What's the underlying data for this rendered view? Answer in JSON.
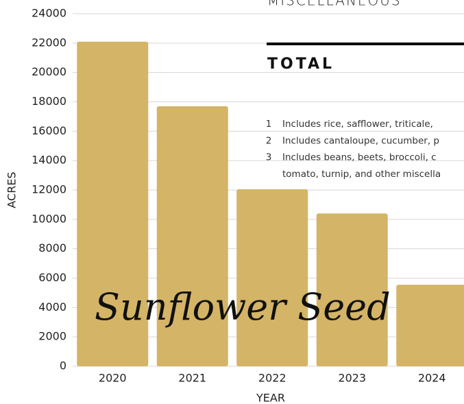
{
  "chart_data": {
    "type": "bar",
    "categories": [
      "2020",
      "2021",
      "2022",
      "2023",
      "2024"
    ],
    "values": [
      22100,
      17700,
      12050,
      10400,
      5550
    ],
    "color": "#d4b466",
    "xlabel": "YEAR",
    "ylabel": "ACRES",
    "ylim": [
      0,
      24000
    ],
    "yticks": [
      0,
      2000,
      4000,
      6000,
      8000,
      10000,
      12000,
      14000,
      16000,
      18000,
      20000,
      22000,
      24000
    ],
    "grid": true,
    "annotations": {
      "heading_top": "MISCELLANEOUS",
      "heading": "TOTAL",
      "footnotes": [
        {
          "number": 1,
          "lines": [
            "Includes rice, safflower, triticale,"
          ]
        },
        {
          "number": 2,
          "lines": [
            "Includes cantaloupe, cucumber, p"
          ]
        },
        {
          "number": 3,
          "lines": [
            "Includes beans, beets, broccoli, c",
            "tomato, turnip, and other miscella"
          ]
        }
      ],
      "overlay": "Sunflower Seed"
    }
  }
}
